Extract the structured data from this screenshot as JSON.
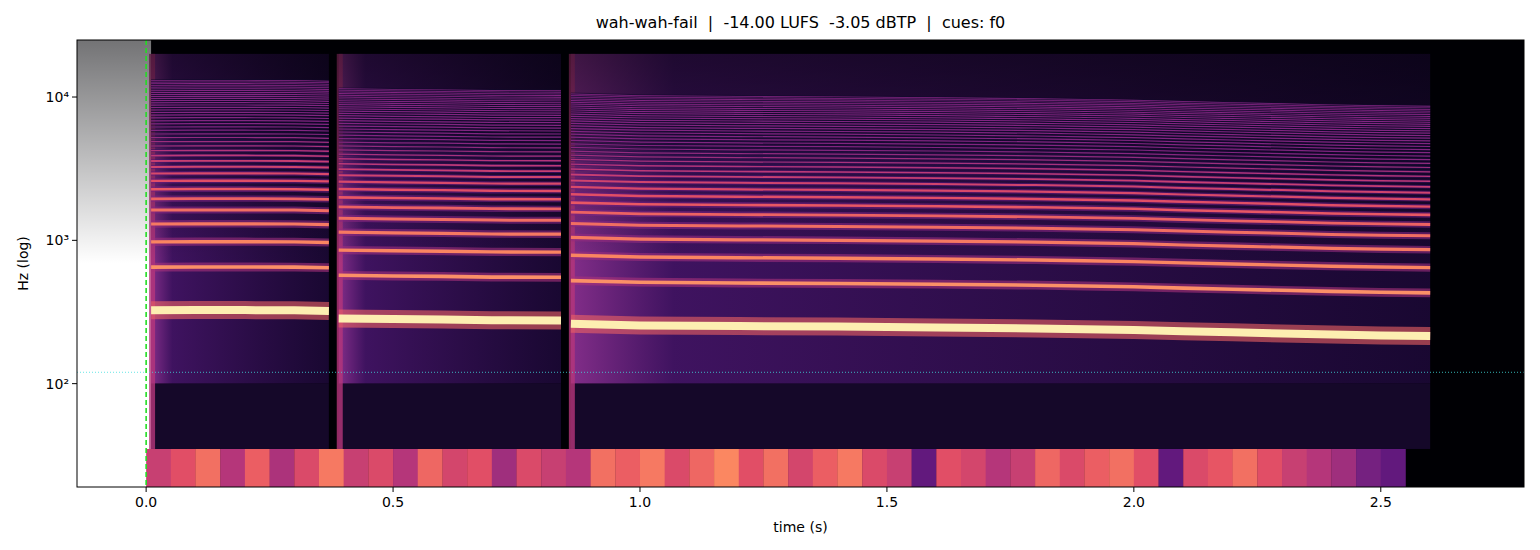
{
  "chart_data": {
    "type": "spectrogram",
    "title": "wah-wah-fail  |  -14.00 LUFS  -3.05 dBTP  |  cues: f0",
    "x_label": "time (s)",
    "y_label": "Hz (log)",
    "log": "y",
    "xlim": [
      -0.14,
      2.79
    ],
    "ylim": [
      19,
      25000
    ],
    "xticks": [
      {
        "value": 0,
        "label": "0.0"
      },
      0.5,
      {
        "value": 1,
        "label": "1.0"
      },
      1.5,
      {
        "value": 2,
        "label": "2.0"
      },
      2.5
    ],
    "yticks": [
      {
        "value": 100,
        "label": "10²"
      },
      {
        "value": 1000,
        "label": "10³"
      },
      {
        "value": 10000,
        "label": "10⁴"
      }
    ],
    "series": [
      {
        "x": [
          0.01,
          0.1,
          0.2,
          0.3,
          0.37
        ],
        "values": [
          325,
          326,
          326,
          325,
          322
        ]
      },
      {
        "x": [
          0.39,
          0.5,
          0.6,
          0.7,
          0.84
        ],
        "values": [
          285,
          282,
          280,
          277,
          276
        ]
      },
      {
        "x": [
          0.86,
          1.0,
          1.2,
          1.4,
          1.6,
          1.8,
          1.9,
          2.0,
          2.1,
          2.2,
          2.3,
          2.4,
          2.5,
          2.6
        ],
        "values": [
          262,
          255,
          252,
          250,
          247,
          243,
          240,
          237,
          232,
          228,
          224,
          220,
          217,
          215
        ]
      }
    ],
    "vlines": [
      0
    ],
    "hlines": [
      120
    ],
    "strip": {
      "bins": [
        0,
        0.05,
        0.1,
        0.15,
        0.2,
        0.25,
        0.3,
        0.35,
        0.4,
        0.45,
        0.5,
        0.55,
        0.6,
        0.65,
        0.7,
        0.75,
        0.8,
        0.85,
        0.9,
        0.95,
        1.0,
        1.05,
        1.1,
        1.15,
        1.2,
        1.25,
        1.3,
        1.35,
        1.4,
        1.45,
        1.5,
        1.55,
        1.6,
        1.65,
        1.7,
        1.75,
        1.8,
        1.85,
        1.9,
        1.95,
        2.0,
        2.05,
        2.1,
        2.15,
        2.2,
        2.25,
        2.3,
        2.35,
        2.4,
        2.45,
        2.5,
        2.55
      ],
      "values": [
        0.55,
        0.62,
        0.7,
        0.5,
        0.66,
        0.48,
        0.6,
        0.72,
        0.55,
        0.6,
        0.5,
        0.68,
        0.58,
        0.62,
        0.45,
        0.6,
        0.55,
        0.5,
        0.7,
        0.66,
        0.72,
        0.6,
        0.68,
        0.75,
        0.62,
        0.7,
        0.58,
        0.66,
        0.72,
        0.6,
        0.55,
        0.3,
        0.62,
        0.58,
        0.5,
        0.55,
        0.68,
        0.6,
        0.66,
        0.7,
        0.62,
        0.3,
        0.6,
        0.64,
        0.7,
        0.62,
        0.55,
        0.5,
        0.45,
        0.35,
        0.3
      ]
    }
  }
}
